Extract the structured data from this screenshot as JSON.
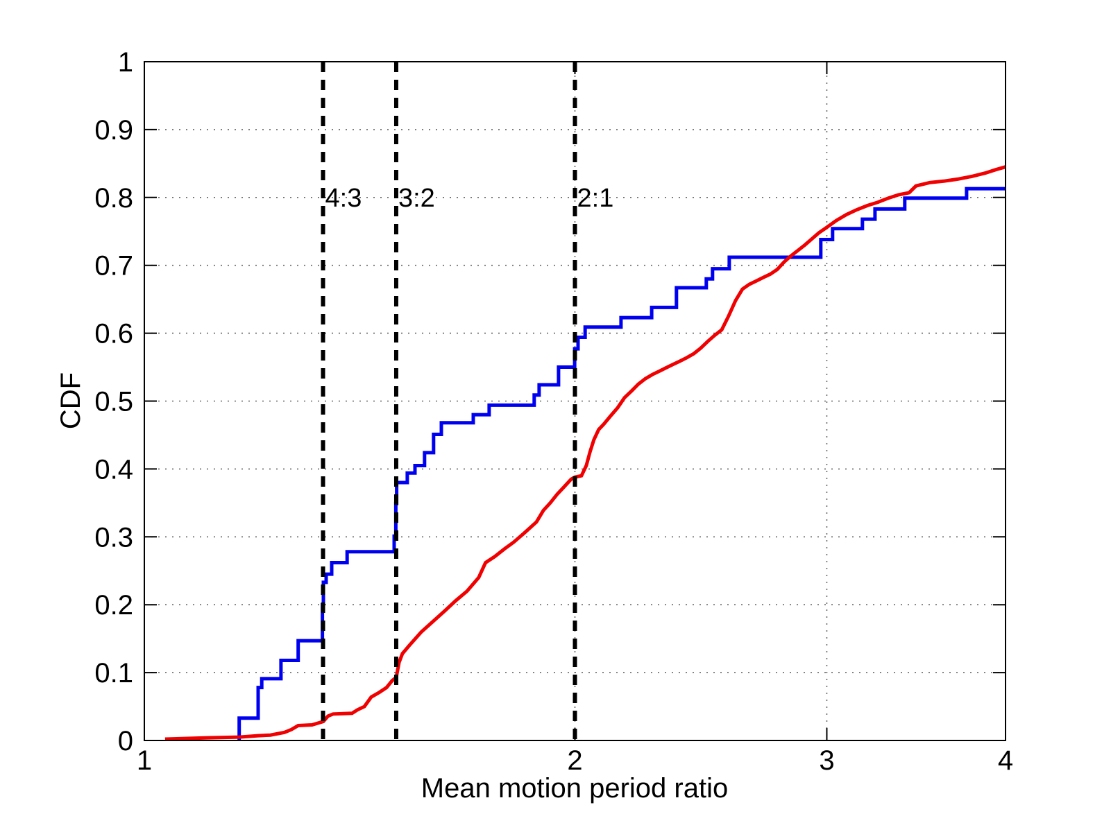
{
  "chart_data": {
    "type": "line",
    "title": "",
    "xlabel": "Mean motion period ratio",
    "ylabel": "CDF",
    "x_scale": "log",
    "xlim": [
      1,
      4
    ],
    "ylim": [
      0,
      1
    ],
    "grid": "dotted",
    "legend": "none",
    "x_ticks": [
      {
        "v": 1,
        "label": "1"
      },
      {
        "v": 2,
        "label": "2"
      },
      {
        "v": 3,
        "label": "3"
      },
      {
        "v": 4,
        "label": "4"
      }
    ],
    "x_grid_values": [
      2,
      3
    ],
    "y_ticks": [
      {
        "v": 0,
        "label": "0"
      },
      {
        "v": 0.1,
        "label": "0.1"
      },
      {
        "v": 0.2,
        "label": "0.2"
      },
      {
        "v": 0.3,
        "label": "0.3"
      },
      {
        "v": 0.4,
        "label": "0.4"
      },
      {
        "v": 0.5,
        "label": "0.5"
      },
      {
        "v": 0.6,
        "label": "0.6"
      },
      {
        "v": 0.7,
        "label": "0.7"
      },
      {
        "v": 0.8,
        "label": "0.8"
      },
      {
        "v": 0.9,
        "label": "0.9"
      },
      {
        "v": 1,
        "label": "1"
      }
    ],
    "annotations": [
      {
        "label": "4:3",
        "x": 1.3333,
        "label_y": 0.8
      },
      {
        "label": "3:2",
        "x": 1.5,
        "label_y": 0.8
      },
      {
        "label": "2:1",
        "x": 2.0,
        "label_y": 0.8
      }
    ],
    "annotation_color": "#000000",
    "series": [
      {
        "name": "observed-sample-step-cdf",
        "color": "#0000F0",
        "style": "step",
        "start_x": 1.165,
        "end_x": 4.0,
        "points": [
          [
            1.165,
            0.033
          ],
          [
            1.201,
            0.078
          ],
          [
            1.208,
            0.091
          ],
          [
            1.246,
            0.118
          ],
          [
            1.281,
            0.147
          ],
          [
            1.332,
            0.2
          ],
          [
            1.334,
            0.233
          ],
          [
            1.34,
            0.245
          ],
          [
            1.352,
            0.262
          ],
          [
            1.386,
            0.278
          ],
          [
            1.495,
            0.301
          ],
          [
            1.499,
            0.349
          ],
          [
            1.501,
            0.38
          ],
          [
            1.527,
            0.394
          ],
          [
            1.546,
            0.405
          ],
          [
            1.57,
            0.424
          ],
          [
            1.593,
            0.451
          ],
          [
            1.613,
            0.468
          ],
          [
            1.698,
            0.48
          ],
          [
            1.742,
            0.494
          ],
          [
            1.873,
            0.509
          ],
          [
            1.888,
            0.524
          ],
          [
            1.948,
            0.55
          ],
          [
            1.999,
            0.577
          ],
          [
            2.01,
            0.594
          ],
          [
            2.033,
            0.609
          ],
          [
            2.154,
            0.623
          ],
          [
            2.263,
            0.638
          ],
          [
            2.355,
            0.667
          ],
          [
            2.471,
            0.68
          ],
          [
            2.496,
            0.695
          ],
          [
            2.564,
            0.712
          ],
          [
            2.971,
            0.738
          ],
          [
            3.028,
            0.754
          ],
          [
            3.177,
            0.768
          ],
          [
            3.242,
            0.783
          ],
          [
            3.401,
            0.799
          ],
          [
            3.757,
            0.813
          ]
        ]
      },
      {
        "name": "model-smooth-cdf",
        "color": "#F00000",
        "style": "line",
        "points": [
          [
            1.034,
            0.002
          ],
          [
            1.108,
            0.004
          ],
          [
            1.165,
            0.005
          ],
          [
            1.201,
            0.007
          ],
          [
            1.225,
            0.008
          ],
          [
            1.253,
            0.012
          ],
          [
            1.267,
            0.016
          ],
          [
            1.281,
            0.022
          ],
          [
            1.31,
            0.023
          ],
          [
            1.334,
            0.028
          ],
          [
            1.344,
            0.036
          ],
          [
            1.355,
            0.039
          ],
          [
            1.397,
            0.04
          ],
          [
            1.409,
            0.045
          ],
          [
            1.425,
            0.05
          ],
          [
            1.441,
            0.064
          ],
          [
            1.46,
            0.071
          ],
          [
            1.477,
            0.078
          ],
          [
            1.49,
            0.088
          ],
          [
            1.5,
            0.093
          ],
          [
            1.507,
            0.115
          ],
          [
            1.515,
            0.128
          ],
          [
            1.532,
            0.14
          ],
          [
            1.562,
            0.16
          ],
          [
            1.62,
            0.19
          ],
          [
            1.651,
            0.206
          ],
          [
            1.681,
            0.22
          ],
          [
            1.713,
            0.24
          ],
          [
            1.732,
            0.262
          ],
          [
            1.758,
            0.271
          ],
          [
            1.785,
            0.282
          ],
          [
            1.812,
            0.292
          ],
          [
            1.842,
            0.305
          ],
          [
            1.88,
            0.322
          ],
          [
            1.901,
            0.339
          ],
          [
            1.922,
            0.35
          ],
          [
            1.944,
            0.363
          ],
          [
            1.966,
            0.374
          ],
          [
            1.988,
            0.385
          ],
          [
            2.0,
            0.388
          ],
          [
            2.021,
            0.39
          ],
          [
            2.037,
            0.405
          ],
          [
            2.049,
            0.425
          ],
          [
            2.062,
            0.443
          ],
          [
            2.078,
            0.458
          ],
          [
            2.095,
            0.466
          ],
          [
            2.118,
            0.478
          ],
          [
            2.142,
            0.49
          ],
          [
            2.166,
            0.505
          ],
          [
            2.191,
            0.515
          ],
          [
            2.215,
            0.525
          ],
          [
            2.24,
            0.533
          ],
          [
            2.265,
            0.539
          ],
          [
            2.291,
            0.544
          ],
          [
            2.316,
            0.549
          ],
          [
            2.342,
            0.554
          ],
          [
            2.369,
            0.559
          ],
          [
            2.395,
            0.564
          ],
          [
            2.422,
            0.57
          ],
          [
            2.449,
            0.578
          ],
          [
            2.477,
            0.588
          ],
          [
            2.505,
            0.597
          ],
          [
            2.533,
            0.605
          ],
          [
            2.561,
            0.625
          ],
          [
            2.59,
            0.648
          ],
          [
            2.619,
            0.665
          ],
          [
            2.648,
            0.672
          ],
          [
            2.678,
            0.677
          ],
          [
            2.708,
            0.682
          ],
          [
            2.739,
            0.687
          ],
          [
            2.77,
            0.694
          ],
          [
            2.801,
            0.705
          ],
          [
            2.832,
            0.714
          ],
          [
            2.864,
            0.722
          ],
          [
            2.896,
            0.73
          ],
          [
            2.929,
            0.739
          ],
          [
            2.962,
            0.748
          ],
          [
            2.995,
            0.755
          ],
          [
            3.046,
            0.766
          ],
          [
            3.097,
            0.775
          ],
          [
            3.149,
            0.782
          ],
          [
            3.202,
            0.788
          ],
          [
            3.257,
            0.793
          ],
          [
            3.312,
            0.799
          ],
          [
            3.368,
            0.804
          ],
          [
            3.425,
            0.807
          ],
          [
            3.463,
            0.817
          ],
          [
            3.541,
            0.822
          ],
          [
            3.621,
            0.824
          ],
          [
            3.703,
            0.827
          ],
          [
            3.787,
            0.831
          ],
          [
            3.872,
            0.836
          ],
          [
            3.938,
            0.841
          ],
          [
            4.0,
            0.845
          ]
        ]
      }
    ]
  }
}
